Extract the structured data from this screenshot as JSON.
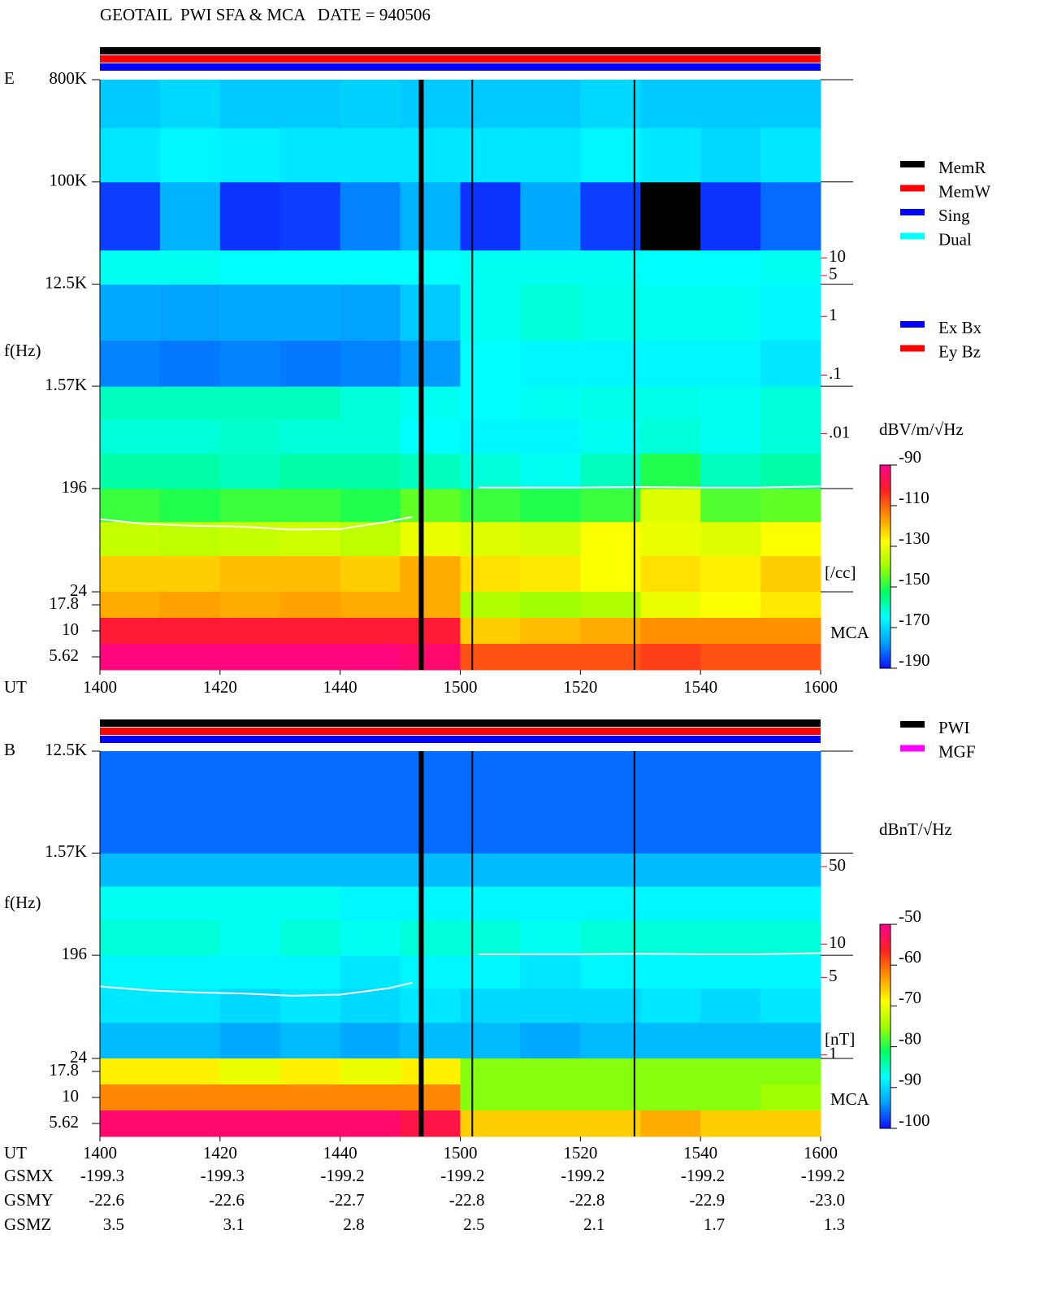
{
  "title": "GEOTAIL  PWI SFA & MCA   DATE = 940506",
  "chart_data": [
    {
      "type": "spectrogram",
      "panel_label": "E",
      "y_label": "f(Hz)",
      "x_label": "UT",
      "xlim": [
        840,
        960
      ],
      "xticks": [
        {
          "value": 840,
          "label": "1400"
        },
        {
          "value": 860,
          "label": "1420"
        },
        {
          "value": 880,
          "label": "1440"
        },
        {
          "value": 900,
          "label": "1500"
        },
        {
          "value": 920,
          "label": "1520"
        },
        {
          "value": 940,
          "label": "1540"
        },
        {
          "value": 960,
          "label": "1600"
        }
      ],
      "log_y": true,
      "ylim": [
        24,
        800000
      ],
      "yticks": [
        24,
        196,
        {
          "value": 1570,
          "label": "1.57K"
        },
        {
          "value": 12500,
          "label": "12.5K"
        },
        {
          "value": 100000,
          "label": "100K"
        },
        {
          "value": 800000,
          "label": "800K"
        }
      ],
      "xbins": [
        840,
        850,
        860,
        870,
        880,
        890,
        900,
        910,
        920,
        930,
        940,
        950,
        960
      ],
      "ybins": [
        24,
        50,
        100,
        196,
        400,
        800,
        1570,
        4000,
        12500,
        25000,
        100000,
        300000,
        800000
      ],
      "z": [
        [
          -122,
          -122,
          -120,
          -120,
          -122,
          -118,
          -124,
          -125,
          -128,
          -124,
          -126,
          -122
        ],
        [
          -135,
          -136,
          -135,
          -134,
          -136,
          -130,
          -132,
          -133,
          -128,
          -130,
          -132,
          -128
        ],
        [
          -148,
          -150,
          -148,
          -148,
          -150,
          -145,
          -148,
          -150,
          -148,
          -132,
          -146,
          -145
        ],
        [
          -158,
          -158,
          -160,
          -158,
          -158,
          -160,
          -162,
          -164,
          -160,
          -150,
          -160,
          -158
        ],
        [
          -162,
          -162,
          -161,
          -162,
          -162,
          -165,
          -166,
          -166,
          -164,
          -162,
          -164,
          -162
        ],
        [
          -160,
          -160,
          -160,
          -160,
          -162,
          -164,
          -165,
          -164,
          -163,
          -163,
          -164,
          -162
        ],
        [
          -180,
          -181,
          -180,
          -181,
          -180,
          -178,
          -165,
          -166,
          -166,
          -166,
          -166,
          -168
        ],
        [
          -176,
          -177,
          -176,
          -176,
          -177,
          -172,
          -164,
          -162,
          -163,
          -164,
          -164,
          -166
        ],
        [
          -164,
          -164,
          -165,
          -165,
          -165,
          -165,
          -164,
          -164,
          -164,
          -165,
          -165,
          -164
        ],
        [
          -186,
          -175,
          -187,
          -186,
          -180,
          -175,
          -187,
          -176,
          -186,
          null,
          -187,
          -182
        ],
        [
          -168,
          -166,
          -167,
          -168,
          -168,
          -168,
          -168,
          -168,
          -166,
          -168,
          -170,
          -168
        ],
        [
          -172,
          -170,
          -172,
          -172,
          -171,
          -172,
          -172,
          -172,
          -170,
          -172,
          -172,
          -172
        ]
      ],
      "null_color": "#000000",
      "mca": {
        "categories": [
          "17.8",
          "10",
          "5.62"
        ],
        "z": [
          [
            -118,
            -117,
            -118,
            -117,
            -118,
            -118,
            -138,
            -140,
            -138,
            -130,
            -128,
            -125
          ],
          [
            -100,
            -100,
            -100,
            -100,
            -100,
            -100,
            -122,
            -120,
            -118,
            -115,
            -115,
            -115
          ],
          [
            -92,
            -92,
            -92,
            -92,
            -92,
            -94,
            -108,
            -108,
            -108,
            -106,
            -108,
            -108
          ]
        ]
      },
      "mca_label": "MCA",
      "trace": {
        "color": "#ffffff",
        "x": [
          840,
          848,
          856,
          864,
          872,
          880,
          888,
          892,
          897,
          903,
          912,
          920,
          930,
          940,
          950,
          960
        ],
        "values": [
          105,
          95,
          92,
          90,
          85,
          86,
          100,
          110,
          null,
          200,
          200,
          200,
          202,
          200,
          200,
          205
        ]
      },
      "gaps": [
        893.5,
        902,
        929
      ],
      "log_y2": true,
      "y2lim": [
        2e-05,
        11000
      ],
      "y2ticks": [
        10,
        5,
        1,
        {
          "value": 0.1,
          "label": ".1"
        },
        {
          "value": 0.01,
          "label": ".01"
        }
      ],
      "y2_label": "[/cc]",
      "y2_color": "#ff0000",
      "colorbar": {
        "label": "dBV/m/√Hz",
        "lim": [
          -190,
          -90
        ],
        "ticks": [
          -90,
          -110,
          -130,
          -150,
          -170,
          -190
        ],
        "colors": [
          "#1010ff",
          "#00a0ff",
          "#00ffff",
          "#00ff60",
          "#a0ff00",
          "#ffff00",
          "#ff9000",
          "#ff2020",
          "#ff0090"
        ]
      },
      "status_bars": [
        "#000000",
        "#ff0000",
        "#0000ff"
      ],
      "status_legend": [
        {
          "name": "MemR",
          "color": "#000000"
        },
        {
          "name": "MemW",
          "color": "#ff0000"
        },
        {
          "name": "Sing",
          "color": "#0000ff"
        },
        {
          "name": "Dual",
          "color": "#00ffff"
        }
      ],
      "legend2": [
        {
          "name": "Ex Bx",
          "color": "#0000ff"
        },
        {
          "name": "Ey Bz",
          "color": "#ff0000"
        }
      ]
    },
    {
      "type": "spectrogram",
      "panel_label": "B",
      "y_label": "f(Hz)",
      "x_label": "UT",
      "xlim": [
        840,
        960
      ],
      "xticks": [
        {
          "value": 840,
          "label": "1400"
        },
        {
          "value": 860,
          "label": "1420"
        },
        {
          "value": 880,
          "label": "1440"
        },
        {
          "value": 900,
          "label": "1500"
        },
        {
          "value": 920,
          "label": "1520"
        },
        {
          "value": 940,
          "label": "1540"
        },
        {
          "value": 960,
          "label": "1600"
        }
      ],
      "log_y": true,
      "ylim": [
        24,
        12500
      ],
      "yticks": [
        24,
        196,
        {
          "value": 1570,
          "label": "1.57K"
        },
        {
          "value": 12500,
          "label": "12.5K"
        }
      ],
      "xbins": [
        840,
        850,
        860,
        870,
        880,
        890,
        900,
        910,
        920,
        930,
        940,
        950,
        960
      ],
      "ybins": [
        24,
        50,
        100,
        196,
        400,
        800,
        1570,
        12500
      ],
      "z": [
        [
          -92,
          -92,
          -93,
          -92,
          -93,
          -92,
          -92,
          -93,
          -92,
          -92,
          -92,
          -92
        ],
        [
          -89,
          -89,
          -90,
          -89,
          -90,
          -89,
          -90,
          -90,
          -90,
          -89,
          -90,
          -89
        ],
        [
          -88,
          -88,
          -88,
          -88,
          -89,
          -88,
          -88,
          -89,
          -88,
          -88,
          -88,
          -88
        ],
        [
          -86,
          -86,
          -87,
          -86,
          -87,
          -86,
          -86,
          -87,
          -86,
          -86,
          -86,
          -86
        ],
        [
          -87,
          -87,
          -87,
          -87,
          -88,
          -88,
          -88,
          -88,
          -88,
          -88,
          -88,
          -88
        ],
        [
          -92,
          -92,
          -92,
          -92,
          -92,
          -92,
          -92,
          -92,
          -92,
          -92,
          -92,
          -92
        ],
        [
          -96,
          -96,
          -96,
          -96,
          -96,
          -96,
          -96,
          -96,
          -96,
          -96,
          -96,
          -96
        ]
      ],
      "null_color": "#000000",
      "mca": {
        "categories": [
          "17.8",
          "10",
          "5.62"
        ],
        "z": [
          [
            -68,
            -68,
            -70,
            -68,
            -70,
            -68,
            -76,
            -76,
            -76,
            -76,
            -76,
            -76
          ],
          [
            -62,
            -62,
            -62,
            -62,
            -62,
            -62,
            -76,
            -76,
            -76,
            -76,
            -76,
            -75
          ],
          [
            -52,
            -52,
            -52,
            -52,
            -52,
            -54,
            -66,
            -66,
            -66,
            -64,
            -66,
            -66
          ]
        ]
      },
      "mca_label": "MCA",
      "trace": {
        "color": "#ffffff",
        "x": [
          840,
          848,
          856,
          864,
          872,
          880,
          888,
          892,
          897,
          903,
          912,
          920,
          930,
          940,
          950,
          960
        ],
        "values": [
          104,
          96,
          92,
          90,
          86,
          88,
          100,
          112,
          null,
          200,
          200,
          200,
          202,
          200,
          200,
          205
        ]
      },
      "gaps": [
        893.5,
        902,
        929
      ],
      "log_y2": true,
      "y2lim": [
        0.93,
        550
      ],
      "y2ticks": [
        50,
        10,
        5,
        1
      ],
      "y2_label": "[nT]",
      "y2_color": "#ff0000",
      "colorbar": {
        "label": "dBnT/√Hz",
        "lim": [
          -100,
          -50
        ],
        "ticks": [
          -50,
          -60,
          -70,
          -80,
          -90,
          -100
        ],
        "colors": [
          "#1010ff",
          "#00a0ff",
          "#00ffff",
          "#00ff60",
          "#a0ff00",
          "#ffff00",
          "#ff9000",
          "#ff2020",
          "#ff0090"
        ]
      },
      "status_bars": [
        "#000000",
        "#ff0000",
        "#0000ff"
      ],
      "status_legend": [
        {
          "name": "PWI",
          "color": "#000000"
        },
        {
          "name": "MGF",
          "color": "#ff00ff"
        }
      ],
      "orbit": [
        {
          "name": "GSMX",
          "values": [
            "-199.3",
            "-199.3",
            "-199.2",
            "-199.2",
            "-199.2",
            "-199.2",
            "-199.2"
          ]
        },
        {
          "name": "GSMY",
          "values": [
            "-22.6",
            "-22.6",
            "-22.7",
            "-22.8",
            "-22.8",
            "-22.9",
            "-23.0"
          ]
        },
        {
          "name": "GSMZ",
          "values": [
            "3.5",
            "3.1",
            "2.8",
            "2.5",
            "2.1",
            "1.7",
            "1.3"
          ]
        }
      ]
    }
  ]
}
